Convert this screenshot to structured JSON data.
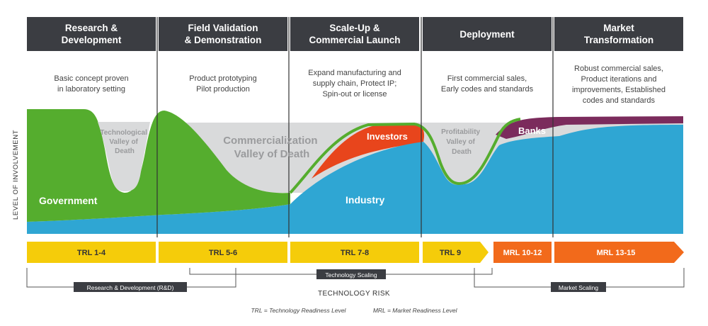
{
  "stages": [
    {
      "title": "Research &\nDevelopment",
      "desc": "Basic concept proven\nin laboratory setting"
    },
    {
      "title": "Field Validation\n& Demonstration",
      "desc": "Product prototyping\nPilot production"
    },
    {
      "title": "Scale-Up &\nCommercial Launch",
      "desc": "Expand manufacturing and\nsupply chain, Protect IP;\nSpin-out or license"
    },
    {
      "title": "Deployment",
      "desc": "First commercial sales,\nEarly codes and standards"
    },
    {
      "title": "Market\nTransformation",
      "desc": "Robust commercial sales,\nProduct iterations and\nimprovements, Established\ncodes and standards"
    }
  ],
  "y_axis_label": "LEVEL OF INVOLVEMENT",
  "area_labels": {
    "government": "Government",
    "industry": "Industry",
    "investors": "Investors",
    "banks": "Banks"
  },
  "valleys": {
    "technological": [
      "Technological",
      "Valley of",
      "Death"
    ],
    "commercialization": [
      "Commercialization",
      "Valley of Death"
    ],
    "profitability": [
      "Profitability",
      "Valley of",
      "Death"
    ]
  },
  "levels": [
    {
      "label": "TRL 1-4",
      "kind": "TRL"
    },
    {
      "label": "TRL 5-6",
      "kind": "TRL"
    },
    {
      "label": "TRL 7-8",
      "kind": "TRL"
    },
    {
      "label": "TRL 9",
      "kind": "TRL"
    },
    {
      "label": "MRL 10-12",
      "kind": "MRL"
    },
    {
      "label": "MRL 13-15",
      "kind": "MRL"
    }
  ],
  "brackets": {
    "rnd": "Research & Development (R&D)",
    "tech_scaling": "Technology Scaling",
    "market_scaling": "Market Scaling"
  },
  "risk_title": "TECHNOLOGY RISK",
  "legend": {
    "trl": "TRL = Technology Readiness Level",
    "mrl": "MRL = Market Readiness Level"
  },
  "colors": {
    "header_bg": "#3b3d42",
    "government": "#55ad2e",
    "industry": "#2fa6d3",
    "investors": "#e8451c",
    "banks": "#7b2b5c",
    "valley": "#d9dadb",
    "trl": "#f5cc0a",
    "mrl": "#f26a1b"
  }
}
